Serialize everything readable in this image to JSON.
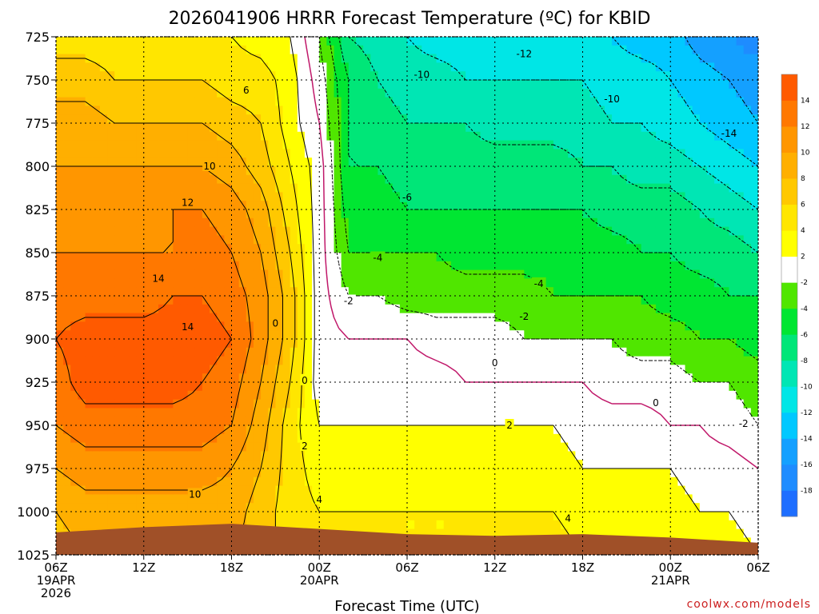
{
  "chart_data": {
    "type": "heatmap",
    "title": "2026041906 HRRR Forecast Temperature (ºC) for KBID",
    "xlabel": "Forecast Time (UTC)",
    "ylabel": "",
    "credit": "coolwx.com/models",
    "x_ticks": [
      {
        "hour": 0,
        "lines": [
          "06Z",
          "19APR",
          "2026"
        ]
      },
      {
        "hour": 6,
        "lines": [
          "12Z"
        ]
      },
      {
        "hour": 12,
        "lines": [
          "18Z"
        ]
      },
      {
        "hour": 18,
        "lines": [
          "00Z",
          "20APR"
        ]
      },
      {
        "hour": 24,
        "lines": [
          "06Z"
        ]
      },
      {
        "hour": 30,
        "lines": [
          "12Z"
        ]
      },
      {
        "hour": 36,
        "lines": [
          "18Z"
        ]
      },
      {
        "hour": 42,
        "lines": [
          "00Z",
          "21APR"
        ]
      },
      {
        "hour": 48,
        "lines": [
          "06Z"
        ]
      }
    ],
    "xlim": [
      0,
      48
    ],
    "y_ticks": [
      "725",
      "750",
      "775",
      "800",
      "825",
      "850",
      "875",
      "900",
      "925",
      "950",
      "975",
      "1000",
      "1025"
    ],
    "ylim": [
      725,
      1025
    ],
    "colorbar": {
      "levels": [
        -20,
        -18,
        -16,
        -14,
        -12,
        -10,
        -8,
        -6,
        -4,
        -2,
        2,
        4,
        6,
        8,
        10,
        12,
        14,
        16
      ],
      "labels": [
        "-18",
        "-16",
        "-14",
        "-12",
        "-10",
        "-8",
        "-6",
        "-4",
        "-2",
        "2",
        "4",
        "6",
        "8",
        "10",
        "12",
        "14"
      ],
      "colors": [
        "#1e6eff",
        "#1e8cff",
        "#14a0ff",
        "#00c8ff",
        "#00e6e6",
        "#00e6b4",
        "#00e678",
        "#00e632",
        "#50e600",
        "#ffffff",
        "#ffff00",
        "#ffe600",
        "#ffc800",
        "#ffaf00",
        "#ff9600",
        "#ff7800",
        "#ff5a00"
      ]
    },
    "ground_color": "#a05028",
    "temperature_grid": {
      "x_hours": [
        0,
        2,
        4,
        6,
        8,
        10,
        12,
        14,
        16,
        18,
        20,
        22,
        24,
        26,
        28,
        30,
        32,
        34,
        36,
        38,
        40,
        42,
        44,
        46,
        48
      ],
      "p_levels": [
        725,
        750,
        775,
        800,
        825,
        850,
        875,
        900,
        925,
        950,
        975,
        1000,
        1025
      ],
      "values": [
        [
          5,
          5,
          5,
          5,
          5,
          5,
          4,
          3,
          2,
          -2,
          -8,
          -9,
          -10,
          -11,
          -11,
          -12,
          -11,
          -11,
          -12,
          -12,
          -13,
          -13,
          -15,
          -16,
          -17
        ],
        [
          7,
          7,
          6,
          6,
          6,
          6,
          5,
          5,
          3,
          -1,
          -6,
          -8,
          -9,
          -9,
          -10,
          -10,
          -10,
          -10,
          -10,
          -11,
          -11,
          -12,
          -13,
          -14,
          -15
        ],
        [
          9,
          9,
          8,
          8,
          8,
          8,
          7,
          6,
          3,
          0,
          -6,
          -7,
          -8,
          -8,
          -8,
          -9,
          -9,
          -9,
          -9,
          -10,
          -10,
          -11,
          -12,
          -13,
          -14
        ],
        [
          10,
          10,
          10,
          10,
          10,
          10,
          9,
          7,
          4,
          1,
          -6,
          -6,
          -7,
          -7,
          -7,
          -7,
          -7,
          -7,
          -8,
          -8,
          -9,
          -9,
          -10,
          -11,
          -12
        ],
        [
          11,
          11,
          11,
          11,
          12,
          12,
          11,
          9,
          5,
          1,
          -5,
          -5,
          -6,
          -6,
          -6,
          -6,
          -6,
          -6,
          -6,
          -7,
          -7,
          -7,
          -8,
          -9,
          -10
        ],
        [
          12,
          12,
          12,
          12,
          12,
          13,
          12,
          10,
          6,
          1,
          -4,
          -4,
          -4,
          -4,
          -5,
          -5,
          -5,
          -5,
          -5,
          -5,
          -6,
          -6,
          -7,
          -7,
          -8
        ],
        [
          13,
          13,
          13,
          13,
          14,
          14,
          13,
          11,
          7,
          1,
          -2,
          -2,
          -3,
          -3,
          -3,
          -3,
          -3,
          -4,
          -4,
          -4,
          -4,
          -5,
          -5,
          -6,
          -6
        ],
        [
          14,
          15,
          15,
          15,
          15,
          15,
          14,
          11,
          7,
          1,
          0,
          0,
          0,
          -1,
          -1,
          -1,
          -2,
          -2,
          -2,
          -2,
          -3,
          -3,
          -4,
          -4,
          -5
        ],
        [
          13,
          15,
          15,
          15,
          15,
          14,
          13,
          10,
          6,
          1,
          1,
          1,
          1,
          1,
          0,
          0,
          0,
          0,
          0,
          -1,
          -1,
          -1,
          -2,
          -2,
          -3
        ],
        [
          12,
          13,
          13,
          13,
          13,
          13,
          12,
          9,
          5,
          2,
          2,
          2,
          2,
          2,
          2,
          2,
          2,
          2,
          1,
          1,
          1,
          0,
          0,
          -1,
          -2
        ],
        [
          10,
          11,
          11,
          11,
          11,
          11,
          10,
          8,
          5,
          3,
          3,
          3,
          3,
          3,
          3,
          3,
          3,
          3,
          2,
          2,
          2,
          2,
          1,
          1,
          0
        ],
        [
          8,
          9,
          9,
          9,
          9,
          9,
          9,
          7,
          5,
          4,
          4,
          4,
          4,
          4,
          4,
          4,
          4,
          4,
          3,
          3,
          3,
          3,
          2,
          2,
          1
        ],
        [
          7,
          8,
          8,
          8,
          8,
          8,
          8,
          7,
          5,
          4,
          5,
          5,
          4,
          4,
          4,
          5,
          5,
          5,
          4,
          4,
          4,
          4,
          3,
          3,
          2
        ]
      ]
    },
    "surface_pressure": [
      {
        "hour": 0,
        "p": 1012
      },
      {
        "hour": 6,
        "p": 1009
      },
      {
        "hour": 12,
        "p": 1007
      },
      {
        "hour": 18,
        "p": 1010
      },
      {
        "hour": 24,
        "p": 1013
      },
      {
        "hour": 30,
        "p": 1014
      },
      {
        "hour": 36,
        "p": 1013
      },
      {
        "hour": 42,
        "p": 1015
      },
      {
        "hour": 48,
        "p": 1018
      }
    ],
    "contour_labels": [
      {
        "text": "6",
        "hour": 13,
        "p": 756
      },
      {
        "text": "10",
        "hour": 10.5,
        "p": 800
      },
      {
        "text": "12",
        "hour": 9,
        "p": 821
      },
      {
        "text": "14",
        "hour": 7,
        "p": 865
      },
      {
        "text": "14",
        "hour": 9,
        "p": 893
      },
      {
        "text": "10",
        "hour": 9.5,
        "p": 990
      },
      {
        "text": "0",
        "hour": 15,
        "p": 891
      },
      {
        "text": "0",
        "hour": 17,
        "p": 924
      },
      {
        "text": "2",
        "hour": 17,
        "p": 962
      },
      {
        "text": "4",
        "hour": 18,
        "p": 993
      },
      {
        "text": "-2",
        "hour": 20,
        "p": 878
      },
      {
        "text": "-4",
        "hour": 22,
        "p": 853
      },
      {
        "text": "-6",
        "hour": 24,
        "p": 818
      },
      {
        "text": "-10",
        "hour": 25,
        "p": 747
      },
      {
        "text": "-12",
        "hour": 32,
        "p": 735
      },
      {
        "text": "-10",
        "hour": 38,
        "p": 761
      },
      {
        "text": "-14",
        "hour": 46,
        "p": 781
      },
      {
        "text": "-4",
        "hour": 33,
        "p": 868
      },
      {
        "text": "-2",
        "hour": 32,
        "p": 887
      },
      {
        "text": "0",
        "hour": 30,
        "p": 914
      },
      {
        "text": "2",
        "hour": 31,
        "p": 950
      },
      {
        "text": "4",
        "hour": 35,
        "p": 1004
      },
      {
        "text": "0",
        "hour": 41,
        "p": 937
      },
      {
        "text": "-2",
        "hour": 47,
        "p": 949
      }
    ]
  }
}
